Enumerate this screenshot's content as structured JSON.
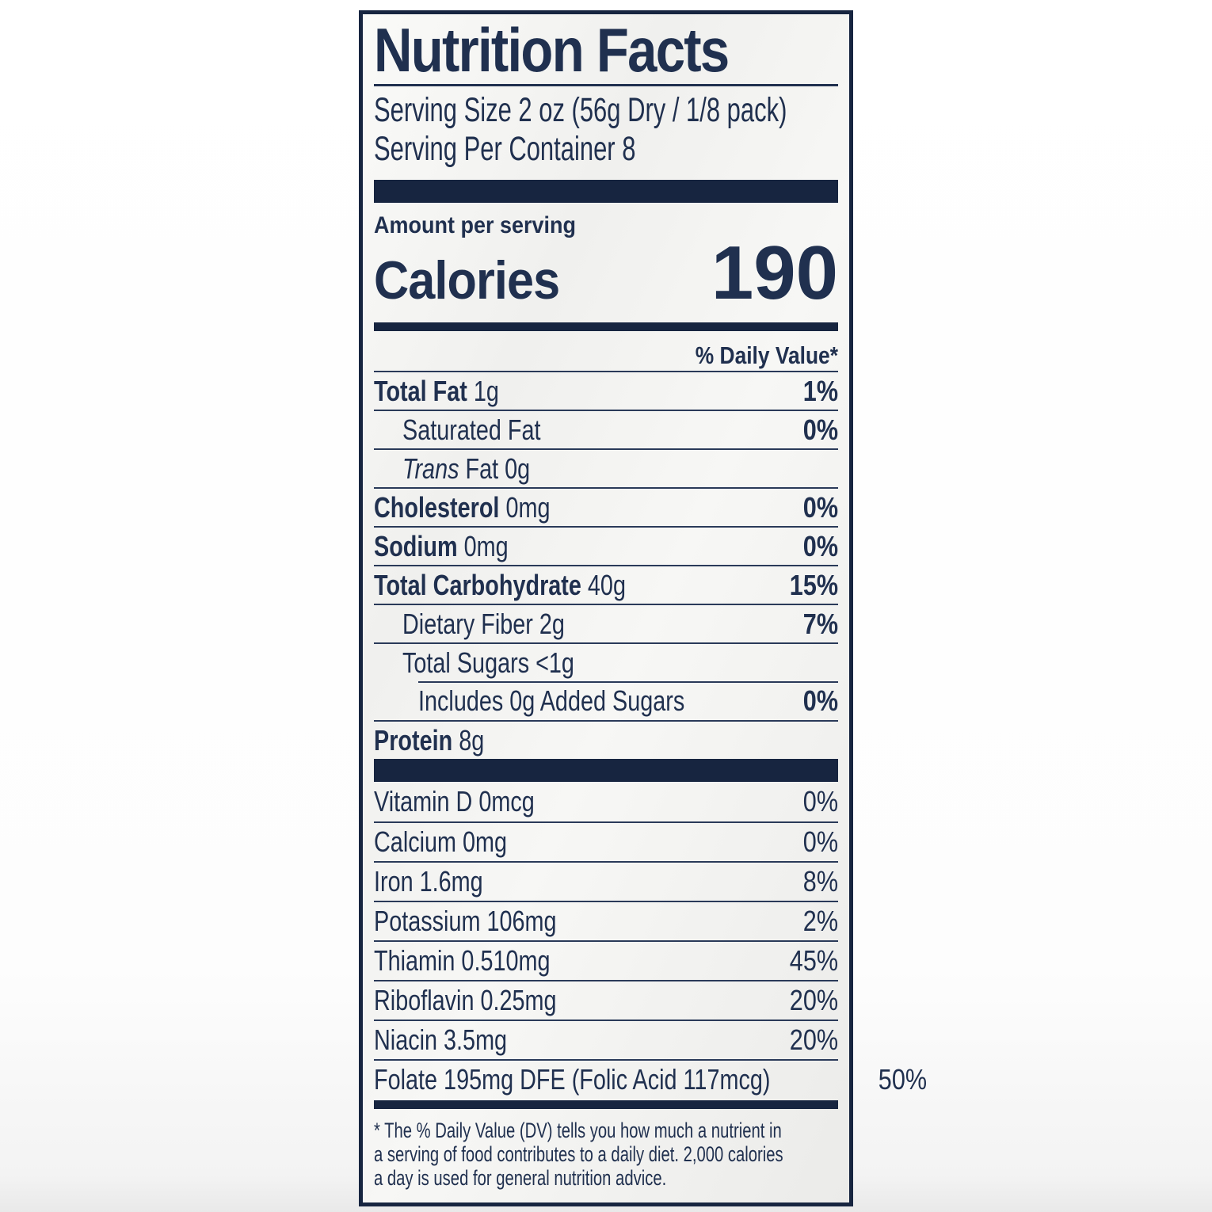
{
  "colors": {
    "navy_text": "#20304f",
    "navy_dark": "#172540",
    "label_background": "#f4f4f2",
    "page_background": "#ffffff"
  },
  "label": {
    "title": "Nutrition Facts",
    "serving_size": "Serving Size 2 oz (56g Dry / 1/8 pack)",
    "servings_per_container": "Serving Per Container 8",
    "amount_per_serving": "Amount per serving",
    "calories_label": "Calories",
    "calories_value": "190",
    "daily_value_header": "% Daily Value*",
    "nutrients": [
      {
        "name": "Total Fat",
        "amount": "1g",
        "dv": "1%",
        "bold": true,
        "dv_bold": true,
        "indent": 0
      },
      {
        "name": "Saturated Fat",
        "amount": "",
        "dv": "0%",
        "bold": false,
        "dv_bold": true,
        "indent": 1
      },
      {
        "italic_prefix": "Trans",
        "name": "Fat",
        "amount": "0g",
        "dv": "",
        "bold": false,
        "dv_bold": false,
        "indent": 1
      },
      {
        "name": "Cholesterol",
        "amount": "0mg",
        "dv": "0%",
        "bold": true,
        "dv_bold": true,
        "indent": 0
      },
      {
        "name": "Sodium",
        "amount": "0mg",
        "dv": "0%",
        "bold": true,
        "dv_bold": true,
        "indent": 0
      },
      {
        "name": "Total Carbohydrate",
        "amount": "40g",
        "dv": "15%",
        "bold": true,
        "dv_bold": true,
        "indent": 0
      },
      {
        "name": "Dietary Fiber",
        "amount": "2g",
        "dv": "7%",
        "bold": false,
        "dv_bold": true,
        "indent": 1
      },
      {
        "name": "Total Sugars",
        "amount": "<1g",
        "dv": "",
        "bold": false,
        "dv_bold": false,
        "indent": 1
      },
      {
        "name": "Includes 0g Added Sugars",
        "amount": "",
        "dv": "0%",
        "bold": false,
        "dv_bold": true,
        "indent": 2,
        "rule_indent": true
      },
      {
        "name": "Protein",
        "amount": "8g",
        "dv": "",
        "bold": true,
        "dv_bold": false,
        "indent": 0
      }
    ],
    "vitamins": [
      {
        "name": "Vitamin D 0mcg",
        "dv": "0%"
      },
      {
        "name": "Calcium 0mg",
        "dv": "0%"
      },
      {
        "name": "Iron 1.6mg",
        "dv": "8%"
      },
      {
        "name": "Potassium 106mg",
        "dv": "2%"
      },
      {
        "name": "Thiamin 0.510mg",
        "dv": "45%"
      },
      {
        "name": "Riboflavin 0.25mg",
        "dv": "20%"
      },
      {
        "name": "Niacin 3.5mg",
        "dv": "20%"
      },
      {
        "name": "Folate 195mg DFE (Folic Acid 117mcg)",
        "dv": "50%"
      }
    ],
    "footnote_lines": [
      "* The % Daily Value (DV) tells you how much a nutrient in",
      "a serving of food contributes to a daily diet. 2,000 calories",
      "a day is used for general nutrition advice."
    ]
  }
}
